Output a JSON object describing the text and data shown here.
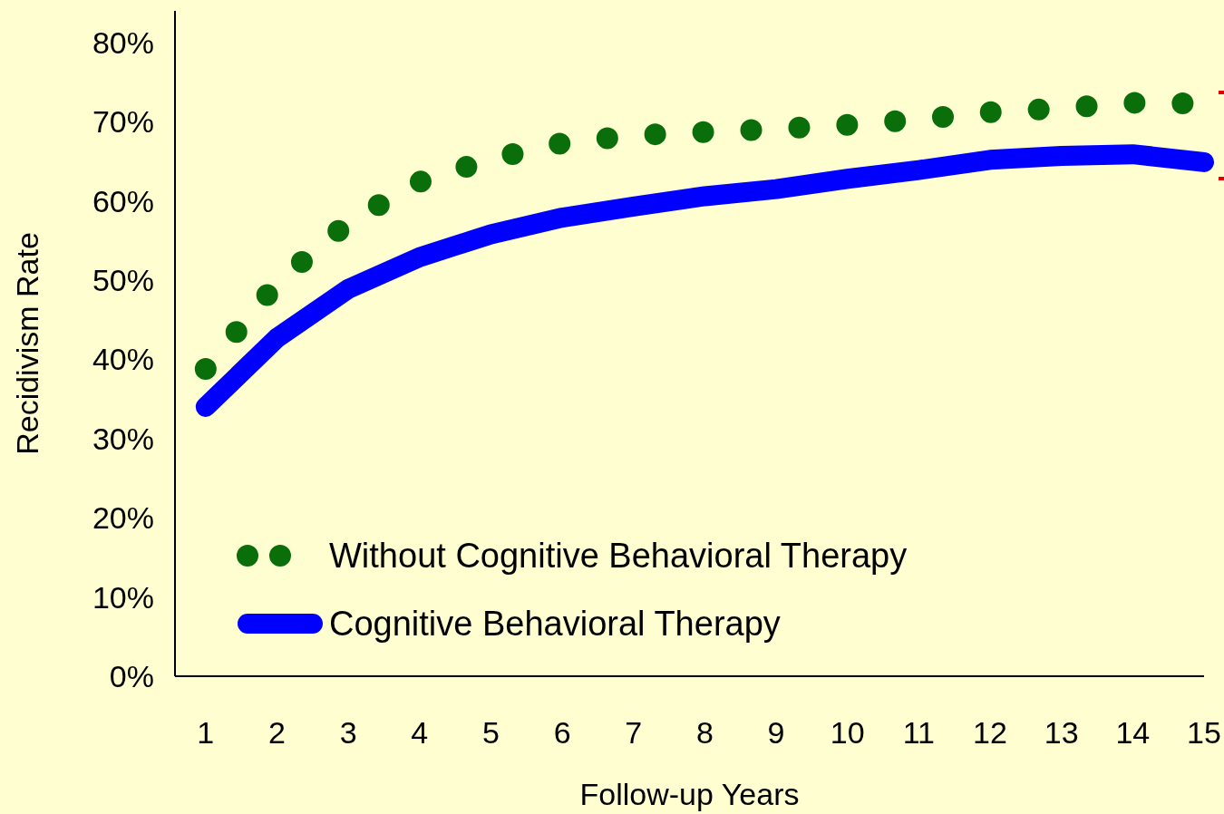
{
  "chart_data": {
    "type": "line",
    "xlabel": "Follow-up Years",
    "ylabel": "Recidivism Rate",
    "x": [
      1,
      2,
      3,
      4,
      5,
      6,
      7,
      8,
      9,
      10,
      11,
      12,
      13,
      14,
      15
    ],
    "xlim": [
      0.57,
      15
    ],
    "xticks": [
      1,
      2,
      3,
      4,
      5,
      6,
      7,
      8,
      9,
      10,
      11,
      12,
      13,
      14,
      15
    ],
    "ylim": [
      0,
      84
    ],
    "yticks": [
      {
        "value": 0,
        "label": "0%"
      },
      {
        "value": 10,
        "label": "10%"
      },
      {
        "value": 20,
        "label": "20%"
      },
      {
        "value": 30,
        "label": "30%"
      },
      {
        "value": 40,
        "label": "40%"
      },
      {
        "value": 50,
        "label": "50%"
      },
      {
        "value": 60,
        "label": "60%"
      },
      {
        "value": 70,
        "label": "70%"
      },
      {
        "value": 80,
        "label": "80%"
      }
    ],
    "series": [
      {
        "name": "Without Cognitive Behavioral Therapy",
        "color": "#0a6e0a",
        "line_style": "dotted",
        "values": [
          38.8,
          49.6,
          57.3,
          62.4,
          65.3,
          67.3,
          68.3,
          68.7,
          69.1,
          69.6,
          70.3,
          71.2,
          71.7,
          72.4,
          72.3
        ]
      },
      {
        "name": "Cognitive Behavioral Therapy",
        "color": "#0000ff",
        "line_style": "solid",
        "values": [
          34.0,
          42.7,
          48.9,
          52.9,
          55.8,
          57.9,
          59.3,
          60.6,
          61.5,
          62.8,
          63.9,
          65.2,
          65.7,
          65.9,
          64.9
        ]
      }
    ],
    "grid": false,
    "legend": "bottom left"
  }
}
